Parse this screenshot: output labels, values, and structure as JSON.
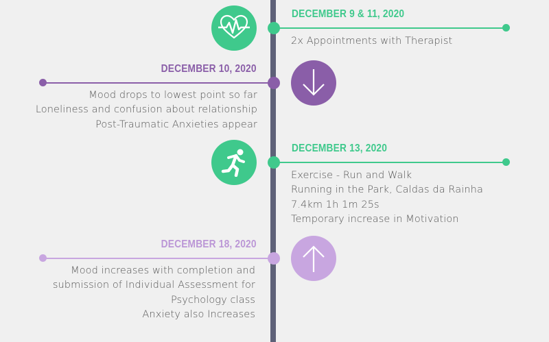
{
  "colors": {
    "spine": "#5e6178",
    "green": "#3fc98c",
    "purple": "#8a5ea8",
    "lilac": "#c8a6e0",
    "text": "#555555",
    "background": "#f0f0f0"
  },
  "events": [
    {
      "date": "DECEMBER 9 & 11, 2020",
      "icon": "heartbeat-icon",
      "lines": [
        "2x Appointments with Therapist"
      ]
    },
    {
      "date": "DECEMBER 10, 2020",
      "icon": "arrow-down-icon",
      "lines": [
        "Mood drops to lowest point so far",
        "Loneliness and confusion about relationship",
        "Post-Traumatic Anxieties appear"
      ]
    },
    {
      "date": "DECEMBER 13, 2020",
      "icon": "runner-icon",
      "lines": [
        "Exercise - Run and Walk",
        "Running in the Park, Caldas da Rainha",
        "7.4km 1h 1m 25s",
        "Temporary increase in Motivation"
      ]
    },
    {
      "date": "DECEMBER 18, 2020",
      "icon": "arrow-up-icon",
      "lines": [
        "Mood increases with completion and",
        "submission of Individual Assessment for",
        "Psychology class",
        "Anxiety also Increases"
      ]
    }
  ]
}
